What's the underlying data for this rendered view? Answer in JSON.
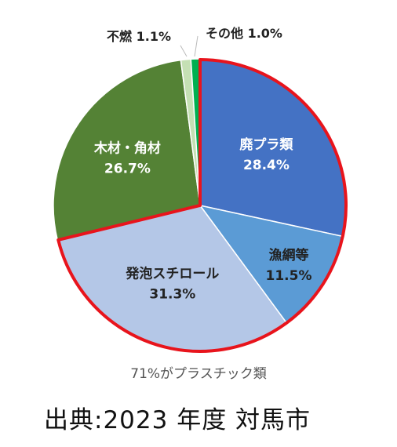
{
  "chart_data": {
    "type": "pie",
    "slices": [
      {
        "label": "廃プラ類",
        "value": 28.4,
        "value_label": "28.4%",
        "color": "#4472C4",
        "text_color": "#ffffff",
        "highlight": true
      },
      {
        "label": "漁網等",
        "value": 11.5,
        "value_label": "11.5%",
        "color": "#5B9BD5",
        "text_color": "#222222",
        "highlight": true
      },
      {
        "label": "発泡スチロール",
        "value": 31.3,
        "value_label": "31.3%",
        "color": "#B4C7E7",
        "text_color": "#222222",
        "highlight": true
      },
      {
        "label": "木材・角材",
        "value": 26.7,
        "value_label": "26.7%",
        "color": "#548235",
        "text_color": "#ffffff",
        "highlight": false
      },
      {
        "label": "不燃",
        "value": 1.1,
        "value_label": "1.1%",
        "color": "#C5E0B4",
        "text_color": "#222222",
        "highlight": false
      },
      {
        "label": "その他",
        "value": 1.0,
        "value_label": "1.0%",
        "color": "#00B050",
        "text_color": "#222222",
        "highlight": false
      }
    ],
    "start_angle_deg": 0,
    "direction": "clockwise",
    "highlight_color": "#E8141C",
    "annotation": "71%がプラスチック類"
  },
  "source_text": "出典:2023 年度 対馬市"
}
